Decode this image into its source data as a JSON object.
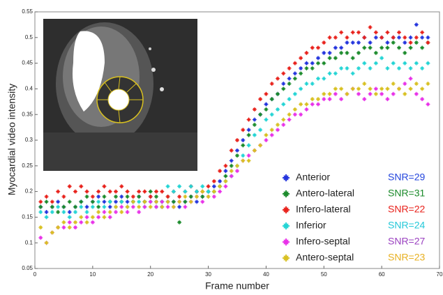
{
  "chart_data": {
    "type": "scatter",
    "y_label": "Myocardial video intensity",
    "x_label": "Frame number",
    "xlim": [
      0,
      70
    ],
    "ylim": [
      0.05,
      0.55
    ],
    "xticks": [
      0,
      10,
      20,
      30,
      40,
      50,
      60,
      70
    ],
    "yticks": [
      0.05,
      0.1,
      0.15,
      0.2,
      0.25,
      0.3,
      0.35,
      0.4,
      0.45,
      0.5,
      0.55
    ],
    "x": [
      1,
      2,
      3,
      4,
      5,
      6,
      7,
      8,
      9,
      10,
      11,
      12,
      13,
      14,
      15,
      16,
      17,
      18,
      19,
      20,
      21,
      22,
      23,
      24,
      25,
      26,
      27,
      28,
      29,
      30,
      31,
      32,
      33,
      34,
      35,
      36,
      37,
      38,
      39,
      40,
      41,
      42,
      43,
      44,
      45,
      46,
      47,
      48,
      49,
      50,
      51,
      52,
      53,
      54,
      55,
      56,
      57,
      58,
      59,
      60,
      61,
      62,
      63,
      64,
      65,
      66,
      67,
      68
    ],
    "series": [
      {
        "name": "Anterior",
        "snr": "SNR=29",
        "color": "#2233dd",
        "snr_color": "#2244dd",
        "values": [
          0.17,
          0.16,
          0.17,
          0.18,
          0.17,
          0.16,
          0.17,
          0.18,
          0.17,
          0.18,
          0.19,
          0.18,
          0.17,
          0.18,
          0.19,
          0.18,
          0.18,
          0.19,
          0.18,
          0.19,
          0.18,
          0.17,
          0.18,
          0.18,
          0.17,
          0.18,
          0.19,
          0.18,
          0.19,
          0.2,
          0.21,
          0.22,
          0.24,
          0.26,
          0.28,
          0.3,
          0.32,
          0.34,
          0.35,
          0.37,
          0.38,
          0.39,
          0.41,
          0.42,
          0.43,
          0.44,
          0.45,
          0.45,
          0.46,
          0.47,
          0.47,
          0.48,
          0.48,
          0.49,
          0.49,
          0.49,
          0.5,
          0.49,
          0.5,
          0.5,
          0.49,
          0.5,
          0.5,
          0.49,
          0.5,
          0.525,
          0.5,
          0.5
        ]
      },
      {
        "name": "Antero-lateral",
        "snr": "SNR=31",
        "color": "#1a8a2a",
        "snr_color": "#1a8a2a",
        "values": [
          0.17,
          0.18,
          0.17,
          0.16,
          0.17,
          0.18,
          0.17,
          0.18,
          0.19,
          0.18,
          0.17,
          0.19,
          0.18,
          0.19,
          0.18,
          0.19,
          0.18,
          0.19,
          0.18,
          0.2,
          0.19,
          0.18,
          0.19,
          0.18,
          0.14,
          0.18,
          0.19,
          0.2,
          0.19,
          0.2,
          0.2,
          0.21,
          0.23,
          0.25,
          0.27,
          0.29,
          0.31,
          0.33,
          0.35,
          0.36,
          0.38,
          0.39,
          0.4,
          0.41,
          0.42,
          0.43,
          0.44,
          0.44,
          0.45,
          0.45,
          0.46,
          0.46,
          0.47,
          0.47,
          0.46,
          0.47,
          0.48,
          0.48,
          0.47,
          0.48,
          0.48,
          0.49,
          0.48,
          0.47,
          0.48,
          0.49,
          0.48,
          0.49
        ]
      },
      {
        "name": "Infero-lateral",
        "snr": "SNR=22",
        "color": "#e8201a",
        "snr_color": "#e8201a",
        "values": [
          0.18,
          0.19,
          0.18,
          0.2,
          0.19,
          0.21,
          0.2,
          0.21,
          0.2,
          0.19,
          0.2,
          0.21,
          0.2,
          0.2,
          0.21,
          0.2,
          0.19,
          0.2,
          0.2,
          0.19,
          0.2,
          0.2,
          0.19,
          0.2,
          0.19,
          0.2,
          0.21,
          0.2,
          0.2,
          0.21,
          0.22,
          0.24,
          0.25,
          0.28,
          0.3,
          0.32,
          0.34,
          0.36,
          0.38,
          0.39,
          0.41,
          0.42,
          0.43,
          0.44,
          0.45,
          0.46,
          0.47,
          0.48,
          0.48,
          0.49,
          0.5,
          0.5,
          0.51,
          0.5,
          0.51,
          0.51,
          0.5,
          0.52,
          0.51,
          0.5,
          0.51,
          0.5,
          0.51,
          0.5,
          0.49,
          0.5,
          0.51,
          0.49
        ]
      },
      {
        "name": "Inferior",
        "snr": "SNR=24",
        "color": "#22d4d4",
        "snr_color": "#22c8d8",
        "values": [
          0.16,
          0.15,
          0.16,
          0.17,
          0.16,
          0.15,
          0.16,
          0.17,
          0.16,
          0.17,
          0.18,
          0.17,
          0.18,
          0.17,
          0.18,
          0.17,
          0.18,
          0.18,
          0.17,
          0.18,
          0.17,
          0.18,
          0.21,
          0.2,
          0.21,
          0.2,
          0.21,
          0.2,
          0.21,
          0.2,
          0.2,
          0.21,
          0.22,
          0.23,
          0.25,
          0.27,
          0.29,
          0.31,
          0.32,
          0.34,
          0.35,
          0.36,
          0.37,
          0.38,
          0.39,
          0.4,
          0.41,
          0.41,
          0.42,
          0.42,
          0.43,
          0.43,
          0.44,
          0.44,
          0.43,
          0.44,
          0.45,
          0.44,
          0.45,
          0.46,
          0.44,
          0.45,
          0.44,
          0.45,
          0.44,
          0.45,
          0.44,
          0.45
        ]
      },
      {
        "name": "Infero-septal",
        "snr": "SNR=27",
        "color": "#e830e8",
        "snr_color": "#9a40c0",
        "values": [
          0.11,
          0.1,
          0.12,
          0.13,
          0.13,
          0.14,
          0.13,
          0.14,
          0.15,
          0.14,
          0.15,
          0.16,
          0.15,
          0.16,
          0.17,
          0.16,
          0.17,
          0.16,
          0.17,
          0.18,
          0.17,
          0.18,
          0.17,
          0.17,
          0.18,
          0.17,
          0.18,
          0.19,
          0.18,
          0.19,
          0.19,
          0.2,
          0.21,
          0.23,
          0.24,
          0.26,
          0.27,
          0.28,
          0.29,
          0.3,
          0.31,
          0.32,
          0.33,
          0.34,
          0.35,
          0.35,
          0.36,
          0.37,
          0.37,
          0.38,
          0.38,
          0.39,
          0.38,
          0.39,
          0.4,
          0.39,
          0.38,
          0.39,
          0.4,
          0.39,
          0.38,
          0.39,
          0.4,
          0.41,
          0.42,
          0.39,
          0.38,
          0.37
        ]
      },
      {
        "name": "Antero-septal",
        "snr": "SNR=23",
        "color": "#d8c020",
        "snr_color": "#e8b020",
        "values": [
          0.13,
          0.1,
          0.12,
          0.13,
          0.14,
          0.13,
          0.14,
          0.15,
          0.14,
          0.15,
          0.16,
          0.15,
          0.16,
          0.17,
          0.16,
          0.17,
          0.18,
          0.17,
          0.18,
          0.17,
          0.18,
          0.17,
          0.18,
          0.17,
          0.18,
          0.19,
          0.18,
          0.19,
          0.2,
          0.19,
          0.2,
          0.21,
          0.22,
          0.24,
          0.25,
          0.26,
          0.26,
          0.28,
          0.29,
          0.31,
          0.32,
          0.33,
          0.34,
          0.35,
          0.36,
          0.37,
          0.37,
          0.38,
          0.38,
          0.39,
          0.39,
          0.4,
          0.4,
          0.39,
          0.4,
          0.4,
          0.41,
          0.4,
          0.39,
          0.4,
          0.4,
          0.41,
          0.4,
          0.39,
          0.4,
          0.41,
          0.4,
          0.41
        ]
      }
    ]
  }
}
